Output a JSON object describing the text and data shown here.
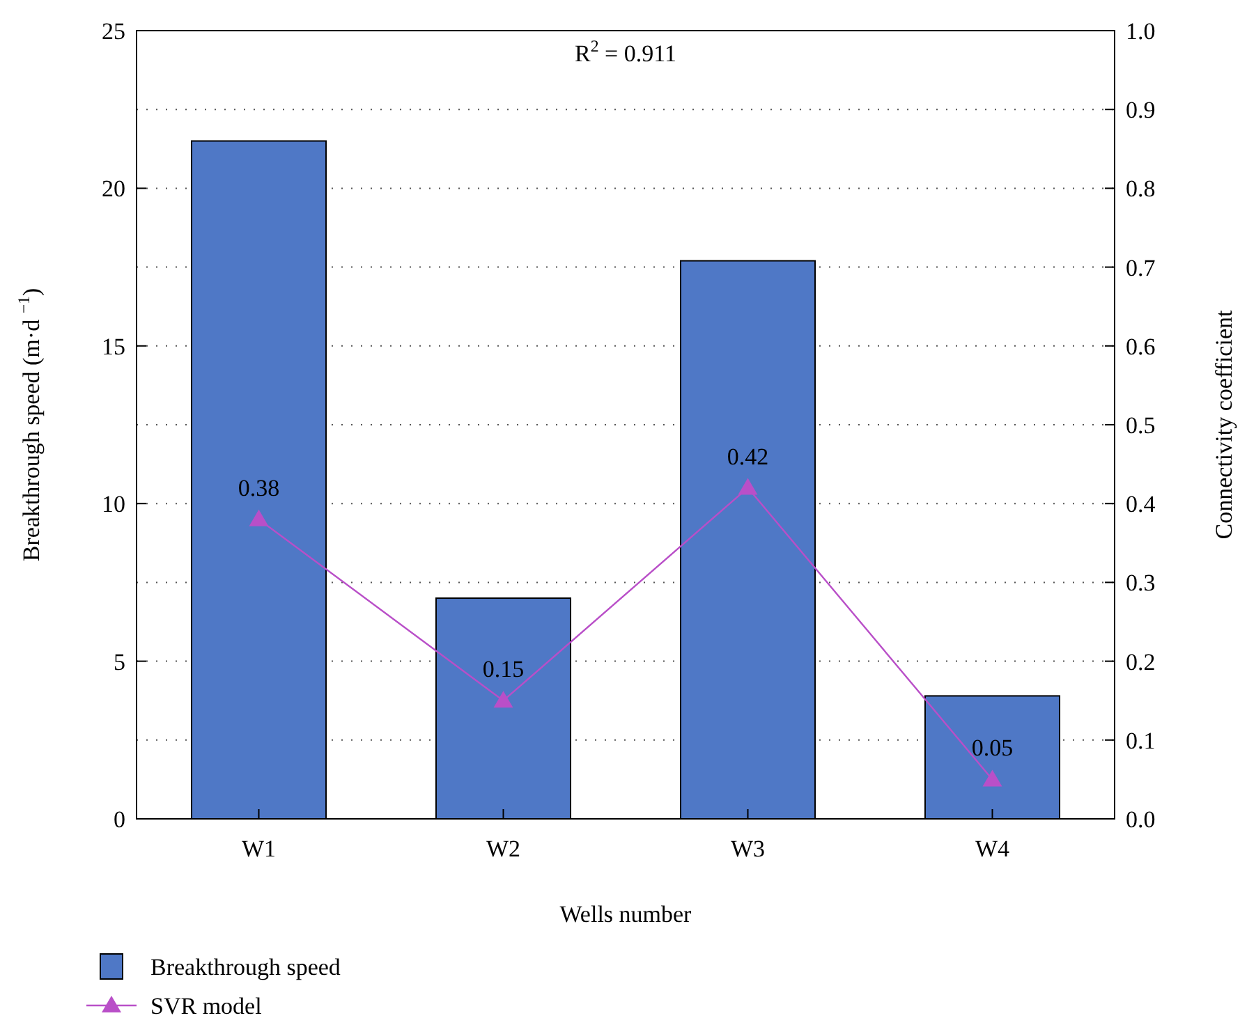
{
  "chart_data": {
    "type": "bar",
    "title": "R$^{2}$ = 0.911",
    "xlabel": "Wells number",
    "ylabel": "Breakthrough speed (m·d $^{−1}$)",
    "y2label": "Connectivity coefficient",
    "categories": [
      "W1",
      "W2",
      "W3",
      "W4"
    ],
    "series": [
      {
        "name": "Breakthrough speed",
        "color": "#4f78c6",
        "values": [
          21.5,
          7.0,
          17.7,
          3.9
        ]
      },
      {
        "name": "SVR model",
        "type": "line",
        "axis": "y2",
        "color": "#b94fc8",
        "marker": "triangle",
        "values": [
          0.38,
          0.15,
          0.42,
          0.05
        ],
        "value_labels": [
          "0.38",
          "0.15",
          "0.42",
          "0.05"
        ]
      }
    ],
    "ylim": [
      0,
      25
    ],
    "yticks": [
      0,
      5,
      10,
      15,
      20,
      25
    ],
    "y2lim": [
      0,
      1
    ],
    "y2ticks": [
      {
        "value": 0,
        "label": "0.0"
      },
      0.1,
      0.2,
      0.3,
      0.4,
      0.5,
      0.6,
      0.7,
      0.8,
      0.9,
      {
        "value": 1,
        "label": "1.0"
      }
    ],
    "grid": true,
    "legend": "bottom left"
  }
}
